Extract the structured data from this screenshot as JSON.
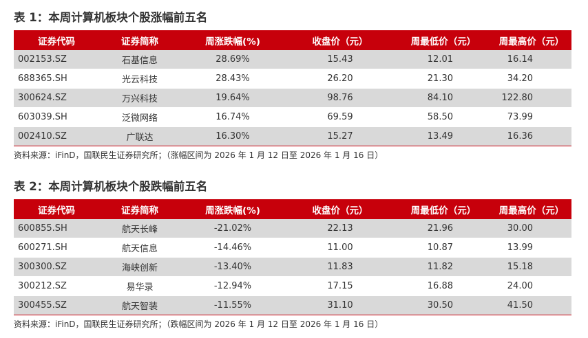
{
  "table1": {
    "title": "表 1：本周计算机板块个股涨幅前五名",
    "headers": [
      "证券代码",
      "证券简称",
      "周涨跌幅(%)",
      "收盘价（元）",
      "周最低价（元）",
      "周最高价（元）"
    ],
    "rows": [
      [
        "002153.SZ",
        "石基信息",
        "28.69%",
        "15.43",
        "12.01",
        "16.14"
      ],
      [
        "688365.SH",
        "光云科技",
        "28.43%",
        "26.20",
        "21.30",
        "34.20"
      ],
      [
        "300624.SZ",
        "万兴科技",
        "19.64%",
        "98.76",
        "84.10",
        "122.80"
      ],
      [
        "603039.SH",
        "泛微网络",
        "16.74%",
        "69.59",
        "58.50",
        "73.99"
      ],
      [
        "002410.SZ",
        "广联达",
        "16.30%",
        "15.27",
        "13.49",
        "16.36"
      ]
    ],
    "source": "资料来源：iFinD，国联民生证券研究所；（涨幅区间为 2026 年 1 月 12 日至 2026 年 1 月 16 日）"
  },
  "table2": {
    "title": "表 2：本周计算机板块个股跌幅前五名",
    "headers": [
      "证券代码",
      "证券简称",
      "周涨跌幅(%)",
      "收盘价（元）",
      "周最低价（元）",
      "周最高价（元）"
    ],
    "rows": [
      [
        "600855.SH",
        "航天长峰",
        "-21.02%",
        "22.13",
        "21.96",
        "30.00"
      ],
      [
        "600271.SH",
        "航天信息",
        "-14.46%",
        "11.00",
        "10.87",
        "13.99"
      ],
      [
        "300300.SZ",
        "海峡创新",
        "-13.40%",
        "11.83",
        "11.82",
        "15.18"
      ],
      [
        "300212.SZ",
        "易华录",
        "-12.94%",
        "17.15",
        "16.88",
        "24.00"
      ],
      [
        "300455.SZ",
        "航天智装",
        "-11.55%",
        "31.10",
        "30.50",
        "41.50"
      ]
    ],
    "source": "资料来源：iFinD，国联民生证券研究所；（跌幅区间为 2026 年 1 月 12 日至 2026 年 1 月 16 日）"
  },
  "colors": {
    "header_bg": "#c7000b",
    "stripe": "#d9d9d9",
    "text": "#333333"
  }
}
